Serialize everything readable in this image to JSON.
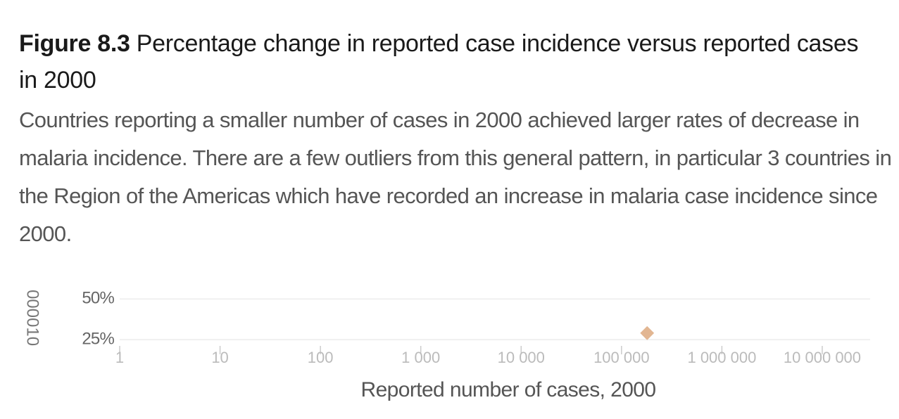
{
  "chart_data": {
    "type": "scatter",
    "figure_label": "Figure 8.3",
    "title": "Percentage change in reported case incidence versus reported cases in 2000",
    "subtitle": "Countries reporting a smaller number of cases in 2000 achieved larger rates of decrease in malaria incidence. There are a few outliers from this general pattern, in particular 3 countries in the Region of the Americas which have recorded an increase in malaria case incidence since 2000.",
    "y_label": "000010",
    "x_label": "Reported number of cases, 2000",
    "x_scale": "log",
    "xlim": [
      1,
      30000000
    ],
    "xticks": [
      1,
      10,
      100,
      {
        "value": 1000,
        "label": "1 000"
      },
      {
        "value": 10000,
        "label": "10 000"
      },
      {
        "value": 100000,
        "label": "100 000"
      },
      {
        "value": 1000000,
        "label": "1 000 000"
      },
      {
        "value": 10000000,
        "label": "10 000 000"
      }
    ],
    "ylim": [
      22,
      54
    ],
    "yticks": [
      {
        "value": 50,
        "label": "50%"
      },
      {
        "value": 25,
        "label": "25%"
      }
    ],
    "grid": true,
    "series": [
      {
        "color": "#e2b692",
        "x": [
          180000
        ],
        "y": [
          29
        ]
      }
    ]
  }
}
